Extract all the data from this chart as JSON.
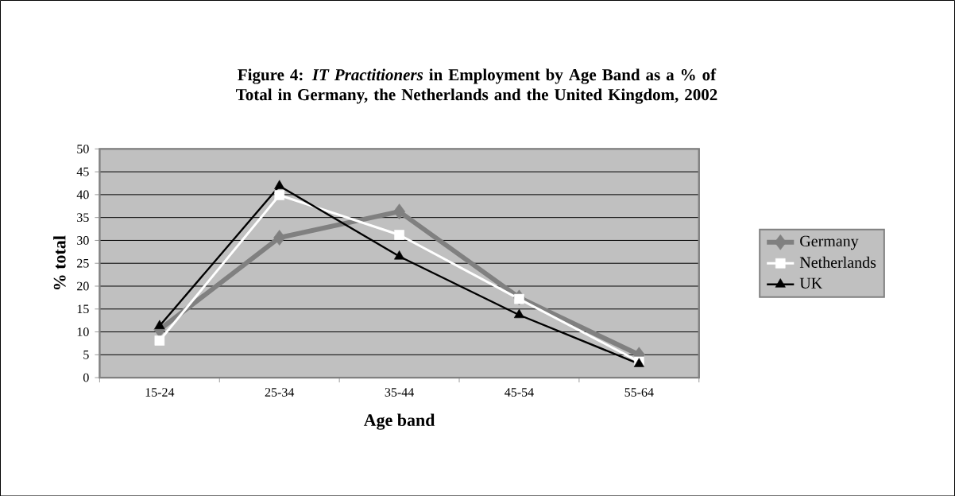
{
  "chart_data": {
    "type": "line",
    "title": "Figure 4: *IT Practitioners*  in Employment by Age Band as a % of Total in Germany, the Netherlands and the United Kingdom, 2002",
    "xlabel": "Age band",
    "ylabel": "% total",
    "categories": [
      "15-24",
      "25-34",
      "35-44",
      "45-54",
      "55-64"
    ],
    "series": [
      {
        "name": "Germany",
        "color": "#808080",
        "marker": "diamond",
        "values": [
          10.5,
          30.6,
          36.3,
          17.5,
          5
        ]
      },
      {
        "name": "Netherlands",
        "color": "#ffffff",
        "marker": "square",
        "values": [
          8.1,
          39.9,
          31.2,
          17.2,
          3.5
        ]
      },
      {
        "name": "UK",
        "color": "#000000",
        "marker": "triangle",
        "values": [
          11.3,
          41.9,
          26.5,
          13.7,
          3
        ]
      }
    ],
    "ylim": [
      0,
      50
    ],
    "yticks": [
      0,
      5,
      10,
      15,
      20,
      25,
      30,
      35,
      40,
      45,
      50
    ],
    "grid": "y",
    "legend": "right",
    "line_style": "solid"
  }
}
